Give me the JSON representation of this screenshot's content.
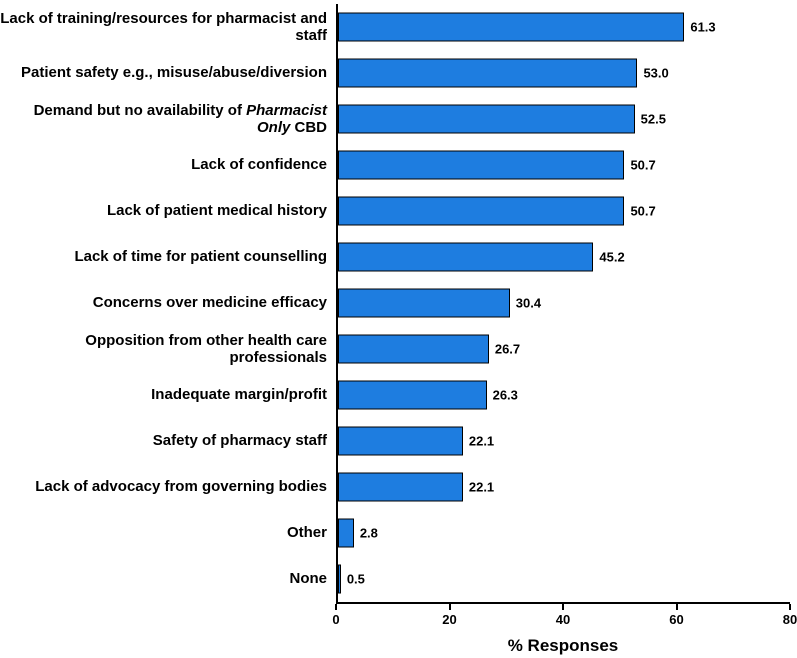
{
  "chart_data": {
    "type": "bar",
    "orientation": "horizontal",
    "title": "",
    "xlabel": "% Responses",
    "xlim": [
      0,
      80
    ],
    "xticks": [
      0,
      20,
      40,
      60,
      80
    ],
    "tick_labels": [
      "0",
      "20",
      "40",
      "60",
      "80"
    ],
    "grid": false,
    "legend": false,
    "bar_color": "#1e7de0",
    "bar_border_color": "#000000",
    "categories": [
      [
        {
          "text": "Lack of training/resources for pharmacist and staff"
        }
      ],
      [
        {
          "text": "Patient safety e.g., misuse/abuse/diversion"
        }
      ],
      [
        {
          "text": "Demand but no availability of "
        },
        {
          "text": "Pharmacist Only",
          "italic": true
        },
        {
          "text": " CBD"
        }
      ],
      [
        {
          "text": "Lack of confidence"
        }
      ],
      [
        {
          "text": "Lack of patient medical history"
        }
      ],
      [
        {
          "text": "Lack of time for patient counselling"
        }
      ],
      [
        {
          "text": "Concerns over medicine efficacy"
        }
      ],
      [
        {
          "text": "Opposition from other health care professionals"
        }
      ],
      [
        {
          "text": "Inadequate margin/profit"
        }
      ],
      [
        {
          "text": "Safety of pharmacy staff"
        }
      ],
      [
        {
          "text": "Lack of advocacy from governing bodies"
        }
      ],
      [
        {
          "text": "Other"
        }
      ],
      [
        {
          "text": "None"
        }
      ]
    ],
    "values": [
      61.3,
      53.0,
      52.5,
      50.7,
      50.7,
      45.2,
      30.4,
      26.7,
      26.3,
      22.1,
      22.1,
      2.8,
      0.5
    ],
    "value_labels": [
      "61.3",
      "53.0",
      "52.5",
      "50.7",
      "50.7",
      "45.2",
      "30.4",
      "26.7",
      "26.3",
      "22.1",
      "22.1",
      "2.8",
      "0.5"
    ]
  }
}
